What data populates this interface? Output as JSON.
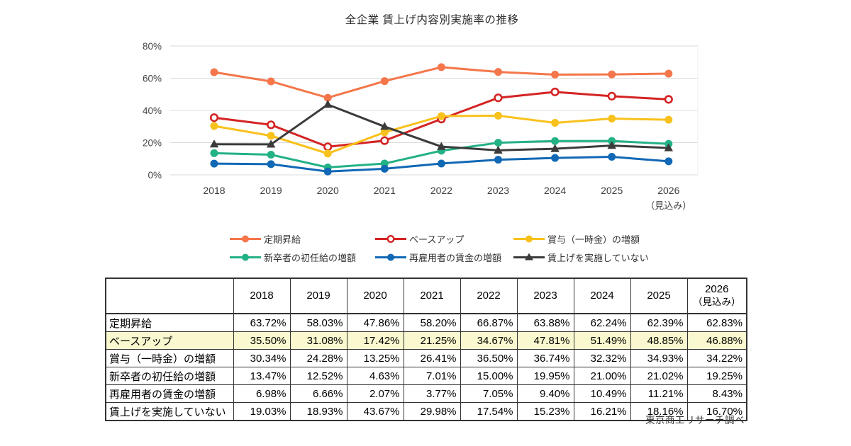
{
  "title": "全企業 賃上げ内容別実施率の推移",
  "source": "東京商工リサーチ調べ",
  "chart_data": {
    "type": "line",
    "title": "全企業 賃上げ内容別実施率の推移",
    "categories": [
      "2018",
      "2019",
      "2020",
      "2021",
      "2022",
      "2023",
      "2024",
      "2025",
      "2026"
    ],
    "forecast_note": "（見込み）",
    "ylim": [
      0,
      80
    ],
    "yticks": [
      0,
      20,
      40,
      60,
      80
    ],
    "ytick_suffix": "%",
    "grid": "horizontal",
    "legend_position": "bottom",
    "series": [
      {
        "id": "regular-pay-raise",
        "name": "定期昇給",
        "color": "#F4764A",
        "marker": "circle",
        "values": [
          63.72,
          58.03,
          47.86,
          58.2,
          66.87,
          63.88,
          62.24,
          62.39,
          62.83
        ]
      },
      {
        "id": "base-up",
        "name": "ベースアップ",
        "color": "#D42323",
        "marker": "open-circle",
        "values": [
          35.5,
          31.08,
          17.42,
          21.25,
          34.67,
          47.81,
          51.49,
          48.85,
          46.88
        ]
      },
      {
        "id": "bonus-increase",
        "name": "賞与（一時金）の増額",
        "color": "#F8C11C",
        "marker": "circle",
        "values": [
          30.34,
          24.28,
          13.25,
          26.41,
          36.5,
          36.74,
          32.32,
          34.93,
          34.22
        ]
      },
      {
        "id": "starting-salary-increase",
        "name": "新卒者の初任給の増額",
        "color": "#23B186",
        "marker": "circle",
        "values": [
          13.47,
          12.52,
          4.63,
          7.01,
          15.0,
          19.95,
          21.0,
          21.02,
          19.25
        ]
      },
      {
        "id": "rehired-wage-increase",
        "name": "再雇用者の賃金の増額",
        "color": "#1168B5",
        "marker": "circle",
        "values": [
          6.98,
          6.66,
          2.07,
          3.77,
          7.05,
          9.4,
          10.49,
          11.21,
          8.43
        ]
      },
      {
        "id": "no-wage-increase",
        "name": "賃上げを実施していない",
        "color": "#3B3B3B",
        "marker": "triangle",
        "values": [
          19.03,
          18.93,
          43.67,
          29.98,
          17.54,
          15.23,
          16.21,
          18.16,
          16.7
        ]
      }
    ]
  },
  "table": {
    "years": [
      "2018",
      "2019",
      "2020",
      "2021",
      "2022",
      "2023",
      "2024",
      "2025"
    ],
    "last_col_line1": "2026",
    "last_col_line2": "（見込み）",
    "highlight_color": "#FAF8CE",
    "rows": [
      {
        "label": "定期昇給",
        "highlight": false,
        "values": [
          "63.72%",
          "58.03%",
          "47.86%",
          "58.20%",
          "66.87%",
          "63.88%",
          "62.24%",
          "62.39%",
          "62.83%"
        ]
      },
      {
        "label": "ベースアップ",
        "highlight": true,
        "values": [
          "35.50%",
          "31.08%",
          "17.42%",
          "21.25%",
          "34.67%",
          "47.81%",
          "51.49%",
          "48.85%",
          "46.88%"
        ]
      },
      {
        "label": "賞与（一時金）の増額",
        "highlight": false,
        "values": [
          "30.34%",
          "24.28%",
          "13.25%",
          "26.41%",
          "36.50%",
          "36.74%",
          "32.32%",
          "34.93%",
          "34.22%"
        ]
      },
      {
        "label": "新卒者の初任給の増額",
        "highlight": false,
        "values": [
          "13.47%",
          "12.52%",
          "4.63%",
          "7.01%",
          "15.00%",
          "19.95%",
          "21.00%",
          "21.02%",
          "19.25%"
        ]
      },
      {
        "label": "再雇用者の賃金の増額",
        "highlight": false,
        "values": [
          "6.98%",
          "6.66%",
          "2.07%",
          "3.77%",
          "7.05%",
          "9.40%",
          "10.49%",
          "11.21%",
          "8.43%"
        ]
      },
      {
        "label": "賃上げを実施していない",
        "highlight": false,
        "values": [
          "19.03%",
          "18.93%",
          "43.67%",
          "29.98%",
          "17.54%",
          "15.23%",
          "16.21%",
          "18.16%",
          "16.70%"
        ]
      }
    ]
  }
}
